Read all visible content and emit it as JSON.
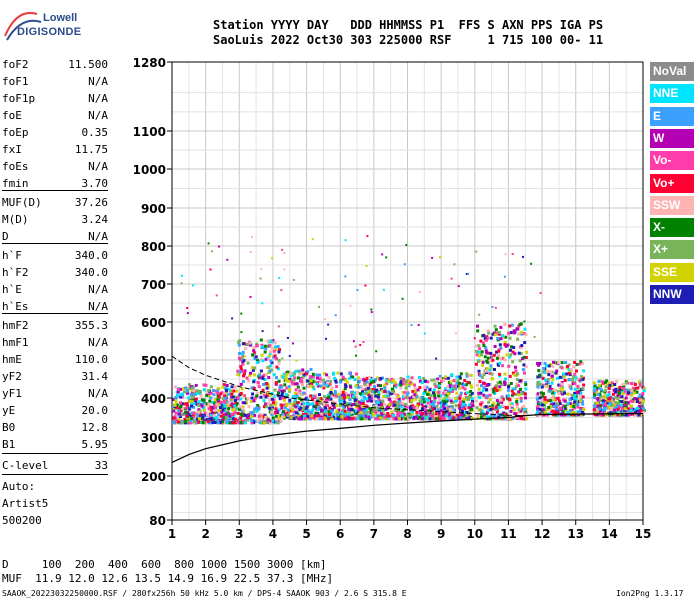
{
  "logo": {
    "line1": "Lowell",
    "line2": "DIGISONDE"
  },
  "header": {
    "labels": "Station YYYY DAY   DDD HHMMSS P1  FFS S AXN PPS IGA PS",
    "values": "SaoLuis 2022 Oct30 303 225000 RSF     1 715 100 00- 11"
  },
  "params": [
    {
      "k": "foF2",
      "v": "11.500"
    },
    {
      "k": "foF1",
      "v": "N/A"
    },
    {
      "k": "foF1p",
      "v": "N/A"
    },
    {
      "k": "foE",
      "v": "N/A"
    },
    {
      "k": "foEp",
      "v": "0.35"
    },
    {
      "k": "fxI",
      "v": "11.75"
    },
    {
      "k": "foEs",
      "v": "N/A"
    },
    {
      "k": "fmin",
      "v": "3.70"
    },
    {
      "k": "MUF(D)",
      "v": "37.26"
    },
    {
      "k": "M(D)",
      "v": "3.24"
    },
    {
      "k": "D",
      "v": "N/A"
    },
    {
      "k": "h`F",
      "v": "340.0"
    },
    {
      "k": "h`F2",
      "v": "340.0"
    },
    {
      "k": "h`E",
      "v": "N/A"
    },
    {
      "k": "h`Es",
      "v": "N/A"
    },
    {
      "k": "hmF2",
      "v": "355.3"
    },
    {
      "k": "hmF1",
      "v": "N/A"
    },
    {
      "k": "hmE",
      "v": "110.0"
    },
    {
      "k": "yF2",
      "v": "31.4"
    },
    {
      "k": "yF1",
      "v": "N/A"
    },
    {
      "k": "yE",
      "v": "20.0"
    },
    {
      "k": "B0",
      "v": "12.8"
    },
    {
      "k": "B1",
      "v": "5.95"
    },
    {
      "k": "C-level",
      "v": "33"
    }
  ],
  "auto": {
    "line1": "Auto:",
    "line2": "Artist5",
    "line3": "500200"
  },
  "legend": [
    {
      "label": "NoVal",
      "color": "#8c8c8c"
    },
    {
      "label": "NNE",
      "color": "#00e5ff"
    },
    {
      "label": "E",
      "color": "#3ca0ff"
    },
    {
      "label": "W",
      "color": "#b400b4"
    },
    {
      "label": "Vo-",
      "color": "#ff3caa"
    },
    {
      "label": "Vo+",
      "color": "#ff0032"
    },
    {
      "label": "SSW",
      "color": "#ffb4b4"
    },
    {
      "label": "X-",
      "color": "#008200"
    },
    {
      "label": "X+",
      "color": "#78b45a"
    },
    {
      "label": "SSE",
      "color": "#d2d200"
    },
    {
      "label": "NNW",
      "color": "#1e1eb4"
    }
  ],
  "muf_table": {
    "line1": "D     100  200  400  600  800 1000 1500 3000 [km]",
    "line2": "MUF  11.9 12.0 12.6 13.5 14.9 16.9 22.5 37.3 [MHz]"
  },
  "footer": {
    "text": "SAAOK_20223032250000.RSF / 280fx256h 50 kHz 5.0 km / DPS-4 SAAOK 903 / 2.6 S 315.8 E",
    "version": "Ion2Png 1.3.17"
  },
  "chart_data": {
    "type": "scatter",
    "xlim": [
      1,
      15
    ],
    "ylim": [
      80,
      1280
    ],
    "x_ticks": [
      1,
      2,
      3,
      4,
      5,
      6,
      7,
      8,
      9,
      10,
      11,
      12,
      13,
      14,
      15
    ],
    "y_ticks": [
      80,
      200,
      300,
      400,
      500,
      600,
      700,
      800,
      900,
      1000,
      1100,
      1280
    ],
    "y_scale": "nonlinear (ionogram virtual height)",
    "grid": true,
    "clusters": [
      {
        "x": [
          1.0,
          2.9
        ],
        "y": [
          340,
          440
        ]
      },
      {
        "x": [
          2.9,
          4.2
        ],
        "y": [
          340,
          560
        ]
      },
      {
        "x": [
          4.2,
          5.2
        ],
        "y": [
          350,
          480
        ]
      },
      {
        "x": [
          5.2,
          6.5
        ],
        "y": [
          350,
          470
        ]
      },
      {
        "x": [
          6.5,
          8.8
        ],
        "y": [
          350,
          460
        ]
      },
      {
        "x": [
          8.8,
          9.9
        ],
        "y": [
          350,
          470
        ]
      },
      {
        "x": [
          10.0,
          11.5
        ],
        "y": [
          350,
          600
        ]
      },
      {
        "x": [
          11.8,
          13.2
        ],
        "y": [
          360,
          500
        ]
      },
      {
        "x": [
          13.5,
          15.0
        ],
        "y": [
          360,
          450
        ]
      }
    ],
    "profile_line": [
      [
        1.0,
        235
      ],
      [
        1.5,
        255
      ],
      [
        2.0,
        270
      ],
      [
        3.0,
        290
      ],
      [
        4.0,
        305
      ],
      [
        5.0,
        315
      ],
      [
        6.0,
        322
      ],
      [
        7.0,
        330
      ],
      [
        8.0,
        336
      ],
      [
        9.0,
        341
      ],
      [
        10.0,
        346
      ],
      [
        11.0,
        350
      ],
      [
        11.5,
        355
      ],
      [
        12.0,
        358
      ],
      [
        15.0,
        360
      ]
    ],
    "dashed_line": [
      [
        1.0,
        510
      ],
      [
        1.5,
        480
      ],
      [
        2.0,
        460
      ],
      [
        2.5,
        445
      ],
      [
        3.0,
        430
      ],
      [
        3.5,
        420
      ],
      [
        4.0,
        410
      ],
      [
        4.5,
        400
      ],
      [
        5.0,
        395
      ],
      [
        6.0,
        385
      ],
      [
        7.0,
        375
      ],
      [
        8.0,
        370
      ],
      [
        9.0,
        365
      ],
      [
        10.0,
        360
      ],
      [
        11.0,
        356
      ],
      [
        11.5,
        355
      ]
    ]
  }
}
